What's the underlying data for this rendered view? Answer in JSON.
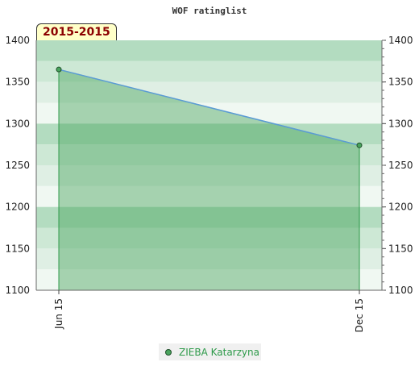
{
  "chart_data": {
    "type": "area",
    "title": "WOF ratinglist",
    "period_label": "2015-2015",
    "x": [
      "Jun 15",
      "Dec 15"
    ],
    "series": [
      {
        "name": "ZIEBA Katarzyna",
        "values": [
          1365,
          1274
        ],
        "color": "#4aa45e"
      }
    ],
    "ylim": [
      1100,
      1400
    ],
    "yticks": [
      1100,
      1150,
      1200,
      1250,
      1300,
      1350,
      1400
    ],
    "band_colors": [
      "#b3dcc0",
      "#cde8d5",
      "#dfefe4",
      "#f0f8f2"
    ]
  }
}
